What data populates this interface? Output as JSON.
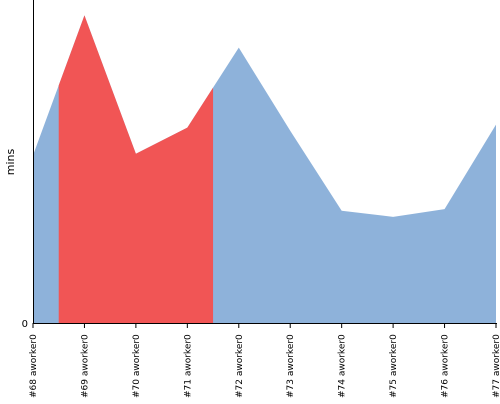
{
  "chart_data": {
    "type": "area",
    "ylabel": "mins",
    "y_tick_labels": [
      "0"
    ],
    "categories": [
      "#68 aworker0",
      "#69 aworker0",
      "#70 aworker0",
      "#71 aworker0",
      "#72 aworker0",
      "#73 aworker0",
      "#74 aworker0",
      "#75 aworker0",
      "#76 aworker0",
      "#77 aworker0"
    ],
    "values": [
      1.09,
      2.0,
      1.1,
      1.27,
      1.79,
      1.25,
      0.73,
      0.69,
      0.74,
      1.29
    ],
    "highlight_range": [
      "#69 aworker0",
      "#71 aworker0"
    ],
    "ylim": [
      0,
      2.1
    ],
    "colors": {
      "area": "#8eb2da",
      "highlight": "#f15555",
      "axis": "#000000"
    },
    "grid": false,
    "legend": "none"
  }
}
